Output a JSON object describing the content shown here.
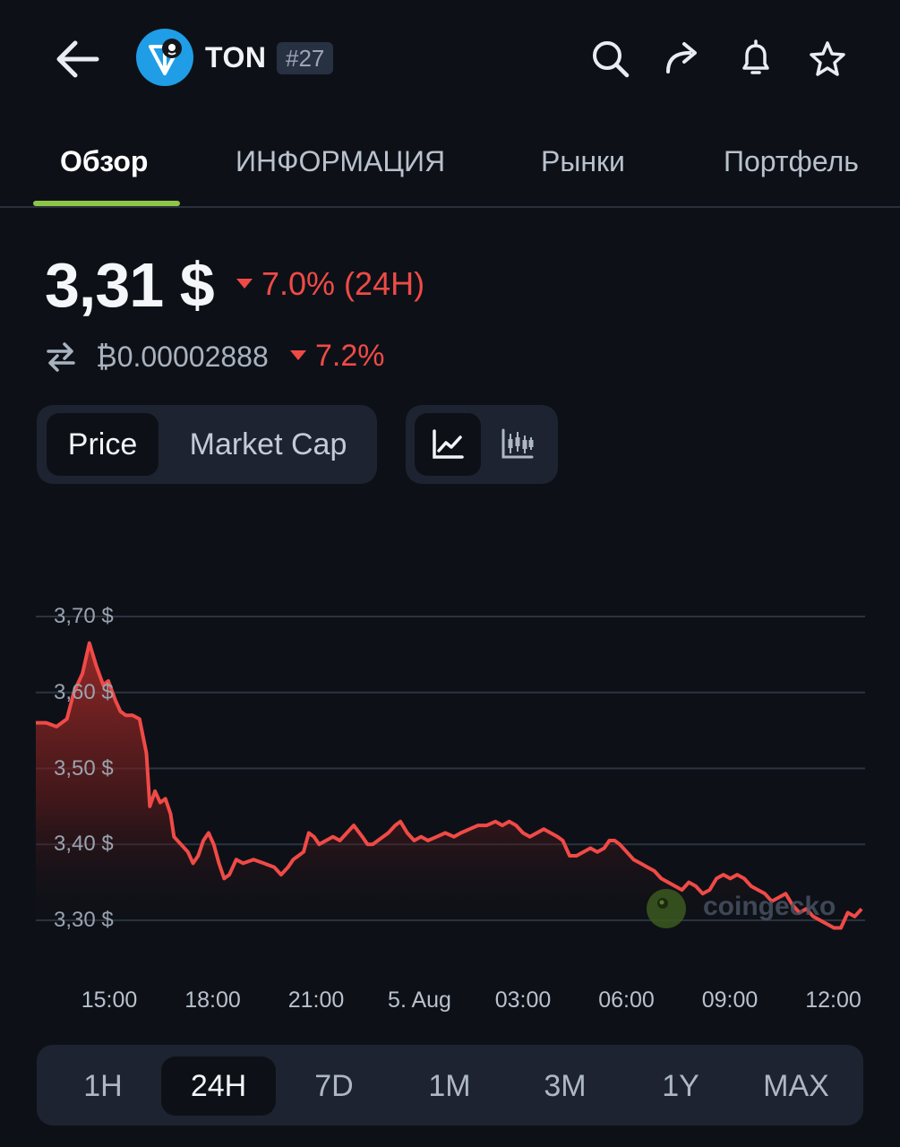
{
  "header": {
    "symbol": "TON",
    "rank": "#27",
    "icons": [
      "back-arrow-icon",
      "search-icon",
      "share-icon",
      "bell-icon",
      "star-icon"
    ]
  },
  "tabs": [
    {
      "label": "Обзор",
      "active": true
    },
    {
      "label": "ИНФОРМАЦИЯ"
    },
    {
      "label": "Рынки"
    },
    {
      "label": "Портфель"
    }
  ],
  "price": {
    "value": "3,31 $",
    "change": "7.0% (24H)",
    "btc_value": "₿0.00002888",
    "btc_change": "7.2%"
  },
  "chart_toggle": {
    "price_label": "Price",
    "market_cap_label": "Market Cap"
  },
  "chart_type_icons": [
    "line-chart-icon",
    "candlestick-chart-icon"
  ],
  "range_buttons": [
    {
      "label": "1H"
    },
    {
      "label": "24H",
      "active": true
    },
    {
      "label": "7D"
    },
    {
      "label": "1M"
    },
    {
      "label": "3M"
    },
    {
      "label": "1Y"
    },
    {
      "label": "MAX"
    }
  ],
  "watermark": "coingecko",
  "colors": {
    "background": "#0d1117",
    "negative": "#f04a47",
    "accent_tab": "#8dc647",
    "panel": "#1d2330"
  },
  "chart_data": {
    "type": "area",
    "x_tick_labels": [
      "15:00",
      "18:00",
      "21:00",
      "5. Aug",
      "03:00",
      "06:00",
      "09:00",
      "12:00"
    ],
    "y_tick_labels": [
      "3,70 $",
      "3,60 $",
      "3,50 $",
      "3,40 $",
      "3,30 $"
    ],
    "y_ticks": [
      3.7,
      3.6,
      3.5,
      3.4,
      3.3
    ],
    "ylim": [
      3.27,
      3.72
    ],
    "x_range_hours": [
      0,
      24
    ],
    "grid": true,
    "series": [
      {
        "color": "#f04a47",
        "points": [
          [
            0,
            3.56
          ],
          [
            0.3,
            3.56
          ],
          [
            0.6,
            3.555
          ],
          [
            0.9,
            3.565
          ],
          [
            1.1,
            3.6
          ],
          [
            1.35,
            3.625
          ],
          [
            1.55,
            3.665
          ],
          [
            1.75,
            3.635
          ],
          [
            1.95,
            3.61
          ],
          [
            2.1,
            3.615
          ],
          [
            2.3,
            3.59
          ],
          [
            2.45,
            3.575
          ],
          [
            2.6,
            3.57
          ],
          [
            2.8,
            3.57
          ],
          [
            3.0,
            3.565
          ],
          [
            3.2,
            3.52
          ],
          [
            3.3,
            3.45
          ],
          [
            3.45,
            3.47
          ],
          [
            3.6,
            3.455
          ],
          [
            3.75,
            3.46
          ],
          [
            3.9,
            3.44
          ],
          [
            4.0,
            3.41
          ],
          [
            4.2,
            3.4
          ],
          [
            4.4,
            3.39
          ],
          [
            4.55,
            3.375
          ],
          [
            4.7,
            3.385
          ],
          [
            4.85,
            3.405
          ],
          [
            5.0,
            3.415
          ],
          [
            5.15,
            3.4
          ],
          [
            5.3,
            3.375
          ],
          [
            5.45,
            3.355
          ],
          [
            5.6,
            3.36
          ],
          [
            5.8,
            3.38
          ],
          [
            6.0,
            3.375
          ],
          [
            6.3,
            3.38
          ],
          [
            6.6,
            3.375
          ],
          [
            6.9,
            3.37
          ],
          [
            7.1,
            3.36
          ],
          [
            7.3,
            3.37
          ],
          [
            7.45,
            3.38
          ],
          [
            7.6,
            3.385
          ],
          [
            7.75,
            3.39
          ],
          [
            7.9,
            3.415
          ],
          [
            8.05,
            3.41
          ],
          [
            8.2,
            3.4
          ],
          [
            8.4,
            3.405
          ],
          [
            8.6,
            3.41
          ],
          [
            8.8,
            3.405
          ],
          [
            9.0,
            3.415
          ],
          [
            9.2,
            3.425
          ],
          [
            9.45,
            3.41
          ],
          [
            9.6,
            3.4
          ],
          [
            9.75,
            3.4
          ],
          [
            9.9,
            3.405
          ],
          [
            10.05,
            3.41
          ],
          [
            10.2,
            3.415
          ],
          [
            10.4,
            3.425
          ],
          [
            10.55,
            3.43
          ],
          [
            10.75,
            3.415
          ],
          [
            10.95,
            3.405
          ],
          [
            11.15,
            3.41
          ],
          [
            11.35,
            3.405
          ],
          [
            11.6,
            3.41
          ],
          [
            11.85,
            3.415
          ],
          [
            12.1,
            3.41
          ],
          [
            12.3,
            3.415
          ],
          [
            12.55,
            3.42
          ],
          [
            12.8,
            3.425
          ],
          [
            13.05,
            3.425
          ],
          [
            13.3,
            3.43
          ],
          [
            13.5,
            3.425
          ],
          [
            13.7,
            3.43
          ],
          [
            13.9,
            3.425
          ],
          [
            14.1,
            3.415
          ],
          [
            14.3,
            3.41
          ],
          [
            14.5,
            3.415
          ],
          [
            14.7,
            3.42
          ],
          [
            14.9,
            3.415
          ],
          [
            15.1,
            3.41
          ],
          [
            15.25,
            3.405
          ],
          [
            15.45,
            3.385
          ],
          [
            15.65,
            3.385
          ],
          [
            15.85,
            3.39
          ],
          [
            16.05,
            3.395
          ],
          [
            16.25,
            3.39
          ],
          [
            16.45,
            3.395
          ],
          [
            16.6,
            3.405
          ],
          [
            16.75,
            3.405
          ],
          [
            16.9,
            3.4
          ],
          [
            17.1,
            3.39
          ],
          [
            17.3,
            3.38
          ],
          [
            17.5,
            3.375
          ],
          [
            17.7,
            3.37
          ],
          [
            17.9,
            3.365
          ],
          [
            18.1,
            3.355
          ],
          [
            18.3,
            3.35
          ],
          [
            18.5,
            3.345
          ],
          [
            18.7,
            3.34
          ],
          [
            18.9,
            3.35
          ],
          [
            19.1,
            3.345
          ],
          [
            19.3,
            3.335
          ],
          [
            19.5,
            3.34
          ],
          [
            19.7,
            3.355
          ],
          [
            19.9,
            3.36
          ],
          [
            20.1,
            3.355
          ],
          [
            20.3,
            3.36
          ],
          [
            20.5,
            3.355
          ],
          [
            20.7,
            3.345
          ],
          [
            20.9,
            3.34
          ],
          [
            21.1,
            3.335
          ],
          [
            21.3,
            3.325
          ],
          [
            21.5,
            3.33
          ],
          [
            21.7,
            3.335
          ],
          [
            21.9,
            3.32
          ],
          [
            22.1,
            3.31
          ],
          [
            22.3,
            3.315
          ],
          [
            22.5,
            3.305
          ],
          [
            22.7,
            3.3
          ],
          [
            22.9,
            3.295
          ],
          [
            23.1,
            3.29
          ],
          [
            23.3,
            3.29
          ],
          [
            23.5,
            3.31
          ],
          [
            23.7,
            3.305
          ],
          [
            23.9,
            3.315
          ]
        ]
      }
    ]
  }
}
